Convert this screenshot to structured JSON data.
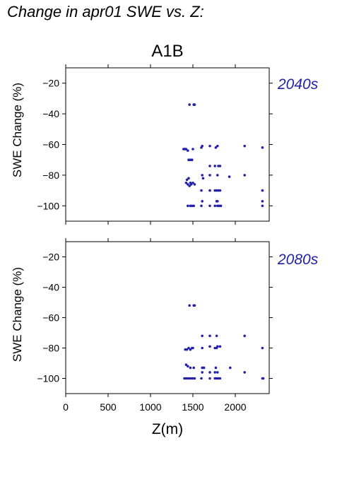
{
  "figure": {
    "title": "Change in apr01 SWE vs. Z:",
    "scenario": "A1B",
    "point_color": "#2222aa"
  },
  "chart_data": [
    {
      "type": "scatter",
      "period_label": "2040s",
      "ylabel": "SWE Change (%)",
      "xlabel": "",
      "xlim": [
        0,
        2400
      ],
      "ylim": [
        -110,
        -10
      ],
      "yticks": [
        -20,
        -40,
        -60,
        -80,
        -100
      ],
      "xticks": [
        0,
        500,
        1000,
        1500,
        2000
      ],
      "grid": false,
      "points": [
        [
          1460,
          -34
        ],
        [
          1510,
          -34
        ],
        [
          1520,
          -34
        ],
        [
          1390,
          -63
        ],
        [
          1400,
          -63
        ],
        [
          1410,
          -63
        ],
        [
          1420,
          -63
        ],
        [
          1440,
          -64
        ],
        [
          1500,
          -63
        ],
        [
          1600,
          -62
        ],
        [
          1610,
          -61
        ],
        [
          1700,
          -61
        ],
        [
          1770,
          -62
        ],
        [
          1790,
          -61
        ],
        [
          2110,
          -61
        ],
        [
          2320,
          -62
        ],
        [
          1450,
          -70
        ],
        [
          1470,
          -70
        ],
        [
          1490,
          -70
        ],
        [
          1700,
          -74
        ],
        [
          1760,
          -74
        ],
        [
          1800,
          -74
        ],
        [
          1820,
          -74
        ],
        [
          1610,
          -80
        ],
        [
          1620,
          -82
        ],
        [
          1700,
          -80
        ],
        [
          1790,
          -80
        ],
        [
          1930,
          -81
        ],
        [
          2110,
          -80
        ],
        [
          1430,
          -83
        ],
        [
          1420,
          -85
        ],
        [
          1440,
          -86
        ],
        [
          1460,
          -87
        ],
        [
          1470,
          -85
        ],
        [
          1480,
          -86
        ],
        [
          1500,
          -85
        ],
        [
          1520,
          -86
        ],
        [
          1450,
          -82
        ],
        [
          1600,
          -90
        ],
        [
          1700,
          -90
        ],
        [
          1760,
          -90
        ],
        [
          1780,
          -90
        ],
        [
          1800,
          -90
        ],
        [
          1820,
          -90
        ],
        [
          2320,
          -90
        ],
        [
          1610,
          -97
        ],
        [
          1780,
          -97
        ],
        [
          1790,
          -97
        ],
        [
          2320,
          -97
        ],
        [
          1440,
          -100
        ],
        [
          1470,
          -100
        ],
        [
          1490,
          -100
        ],
        [
          1510,
          -100
        ],
        [
          1600,
          -100
        ],
        [
          1700,
          -100
        ],
        [
          1760,
          -100
        ],
        [
          1790,
          -100
        ],
        [
          1810,
          -100
        ],
        [
          1830,
          -100
        ],
        [
          2320,
          -100
        ]
      ]
    },
    {
      "type": "scatter",
      "period_label": "2080s",
      "ylabel": "SWE Change (%)",
      "xlabel": "Z(m)",
      "xlim": [
        0,
        2400
      ],
      "ylim": [
        -110,
        -10
      ],
      "yticks": [
        -20,
        -40,
        -60,
        -80,
        -100
      ],
      "xticks": [
        0,
        500,
        1000,
        1500,
        2000
      ],
      "grid": false,
      "points": [
        [
          1460,
          -52
        ],
        [
          1510,
          -52
        ],
        [
          1520,
          -52
        ],
        [
          1610,
          -72
        ],
        [
          1700,
          -72
        ],
        [
          1780,
          -72
        ],
        [
          2110,
          -72
        ],
        [
          1410,
          -81
        ],
        [
          1430,
          -81
        ],
        [
          1450,
          -80
        ],
        [
          1470,
          -81
        ],
        [
          1490,
          -80
        ],
        [
          1500,
          -80
        ],
        [
          1610,
          -80
        ],
        [
          1700,
          -79
        ],
        [
          1760,
          -80
        ],
        [
          1780,
          -80
        ],
        [
          1790,
          -79
        ],
        [
          1820,
          -79
        ],
        [
          2320,
          -80
        ],
        [
          1420,
          -91
        ],
        [
          1440,
          -92
        ],
        [
          1470,
          -93
        ],
        [
          1510,
          -93
        ],
        [
          1610,
          -93
        ],
        [
          1630,
          -93
        ],
        [
          1770,
          -93
        ],
        [
          1940,
          -93
        ],
        [
          1610,
          -96
        ],
        [
          1700,
          -96
        ],
        [
          1760,
          -96
        ],
        [
          1790,
          -96
        ],
        [
          2110,
          -96
        ],
        [
          1400,
          -100
        ],
        [
          1420,
          -100
        ],
        [
          1440,
          -100
        ],
        [
          1460,
          -100
        ],
        [
          1480,
          -100
        ],
        [
          1500,
          -100
        ],
        [
          1520,
          -100
        ],
        [
          1600,
          -100
        ],
        [
          1700,
          -100
        ],
        [
          1760,
          -100
        ],
        [
          1780,
          -100
        ],
        [
          1800,
          -100
        ],
        [
          1820,
          -100
        ],
        [
          2320,
          -100
        ],
        [
          2330,
          -100
        ]
      ]
    }
  ]
}
